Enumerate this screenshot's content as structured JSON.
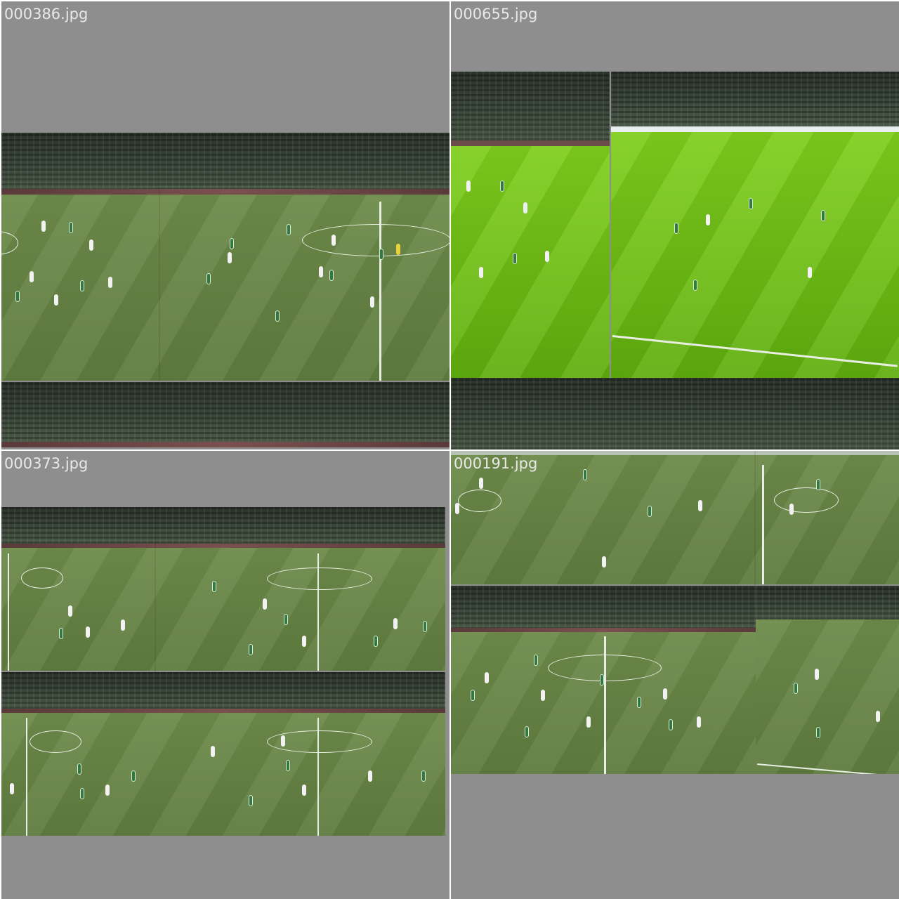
{
  "tiles": [
    {
      "label": "000386.jpg"
    },
    {
      "label": "000655.jpg"
    },
    {
      "label": "000373.jpg"
    },
    {
      "label": "000191.jpg"
    }
  ],
  "colors": {
    "background": "#8e8e8e",
    "pitch_dark": "#5f7c3f",
    "pitch_bright": "#6fbe15",
    "label": "#e8e8e8"
  }
}
